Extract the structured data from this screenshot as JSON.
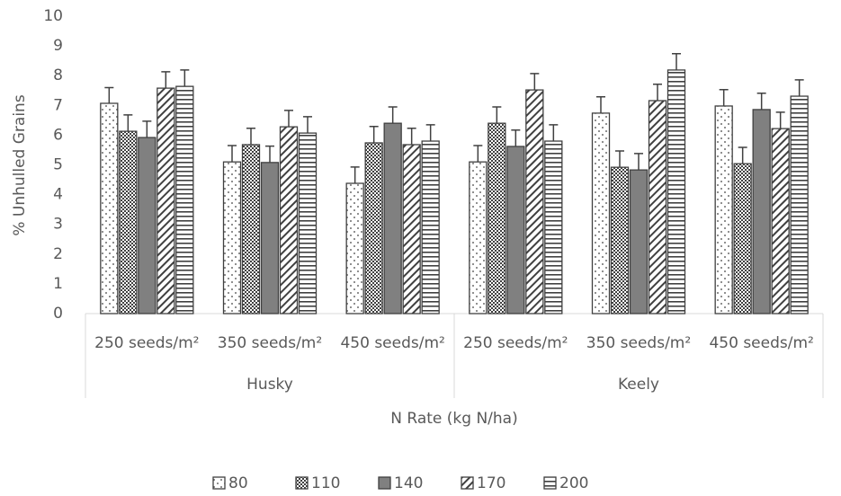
{
  "chart_data": {
    "type": "bar",
    "y_label": "% Unhulled Grains",
    "x_label": "N Rate (kg N/ha)",
    "groups": [
      {
        "name": "Husky",
        "categories": [
          "250 seeds/m²",
          "350 seeds/m²",
          "450 seeds/m²"
        ]
      },
      {
        "name": "Keely",
        "categories": [
          "250 seeds/m²",
          "350 seeds/m²",
          "450 seeds/m²"
        ]
      }
    ],
    "series": [
      {
        "name": "80",
        "pattern": "dots",
        "color": "#404040",
        "values": [
          7.07,
          5.1,
          4.38,
          5.1,
          6.74,
          6.98
        ],
        "errors": [
          0.53,
          0.55,
          0.55,
          0.55,
          0.55,
          0.55
        ]
      },
      {
        "name": "110",
        "pattern": "checks",
        "color": "#404040",
        "values": [
          6.13,
          5.68,
          5.74,
          6.4,
          4.92,
          5.04
        ],
        "errors": [
          0.55,
          0.55,
          0.55,
          0.55,
          0.55,
          0.55
        ]
      },
      {
        "name": "140",
        "pattern": "solid",
        "color": "#404040",
        "values": [
          5.92,
          5.08,
          6.4,
          5.62,
          4.83,
          6.86
        ],
        "errors": [
          0.55,
          0.55,
          0.55,
          0.55,
          0.55,
          0.55
        ]
      },
      {
        "name": "170",
        "pattern": "diagonal",
        "color": "#404040",
        "values": [
          7.58,
          6.28,
          5.68,
          7.52,
          7.16,
          6.22
        ],
        "errors": [
          0.55,
          0.55,
          0.55,
          0.55,
          0.55,
          0.55
        ]
      },
      {
        "name": "200",
        "pattern": "horizontal",
        "color": "#404040",
        "values": [
          7.64,
          6.07,
          5.8,
          5.8,
          8.19,
          7.31
        ],
        "errors": [
          0.55,
          0.55,
          0.55,
          0.55,
          0.55,
          0.55
        ]
      }
    ],
    "ylim": [
      0,
      10
    ],
    "yticks": [
      0,
      1,
      2,
      3,
      4,
      5,
      6,
      7,
      8,
      9,
      10
    ],
    "legend": "bottom"
  }
}
